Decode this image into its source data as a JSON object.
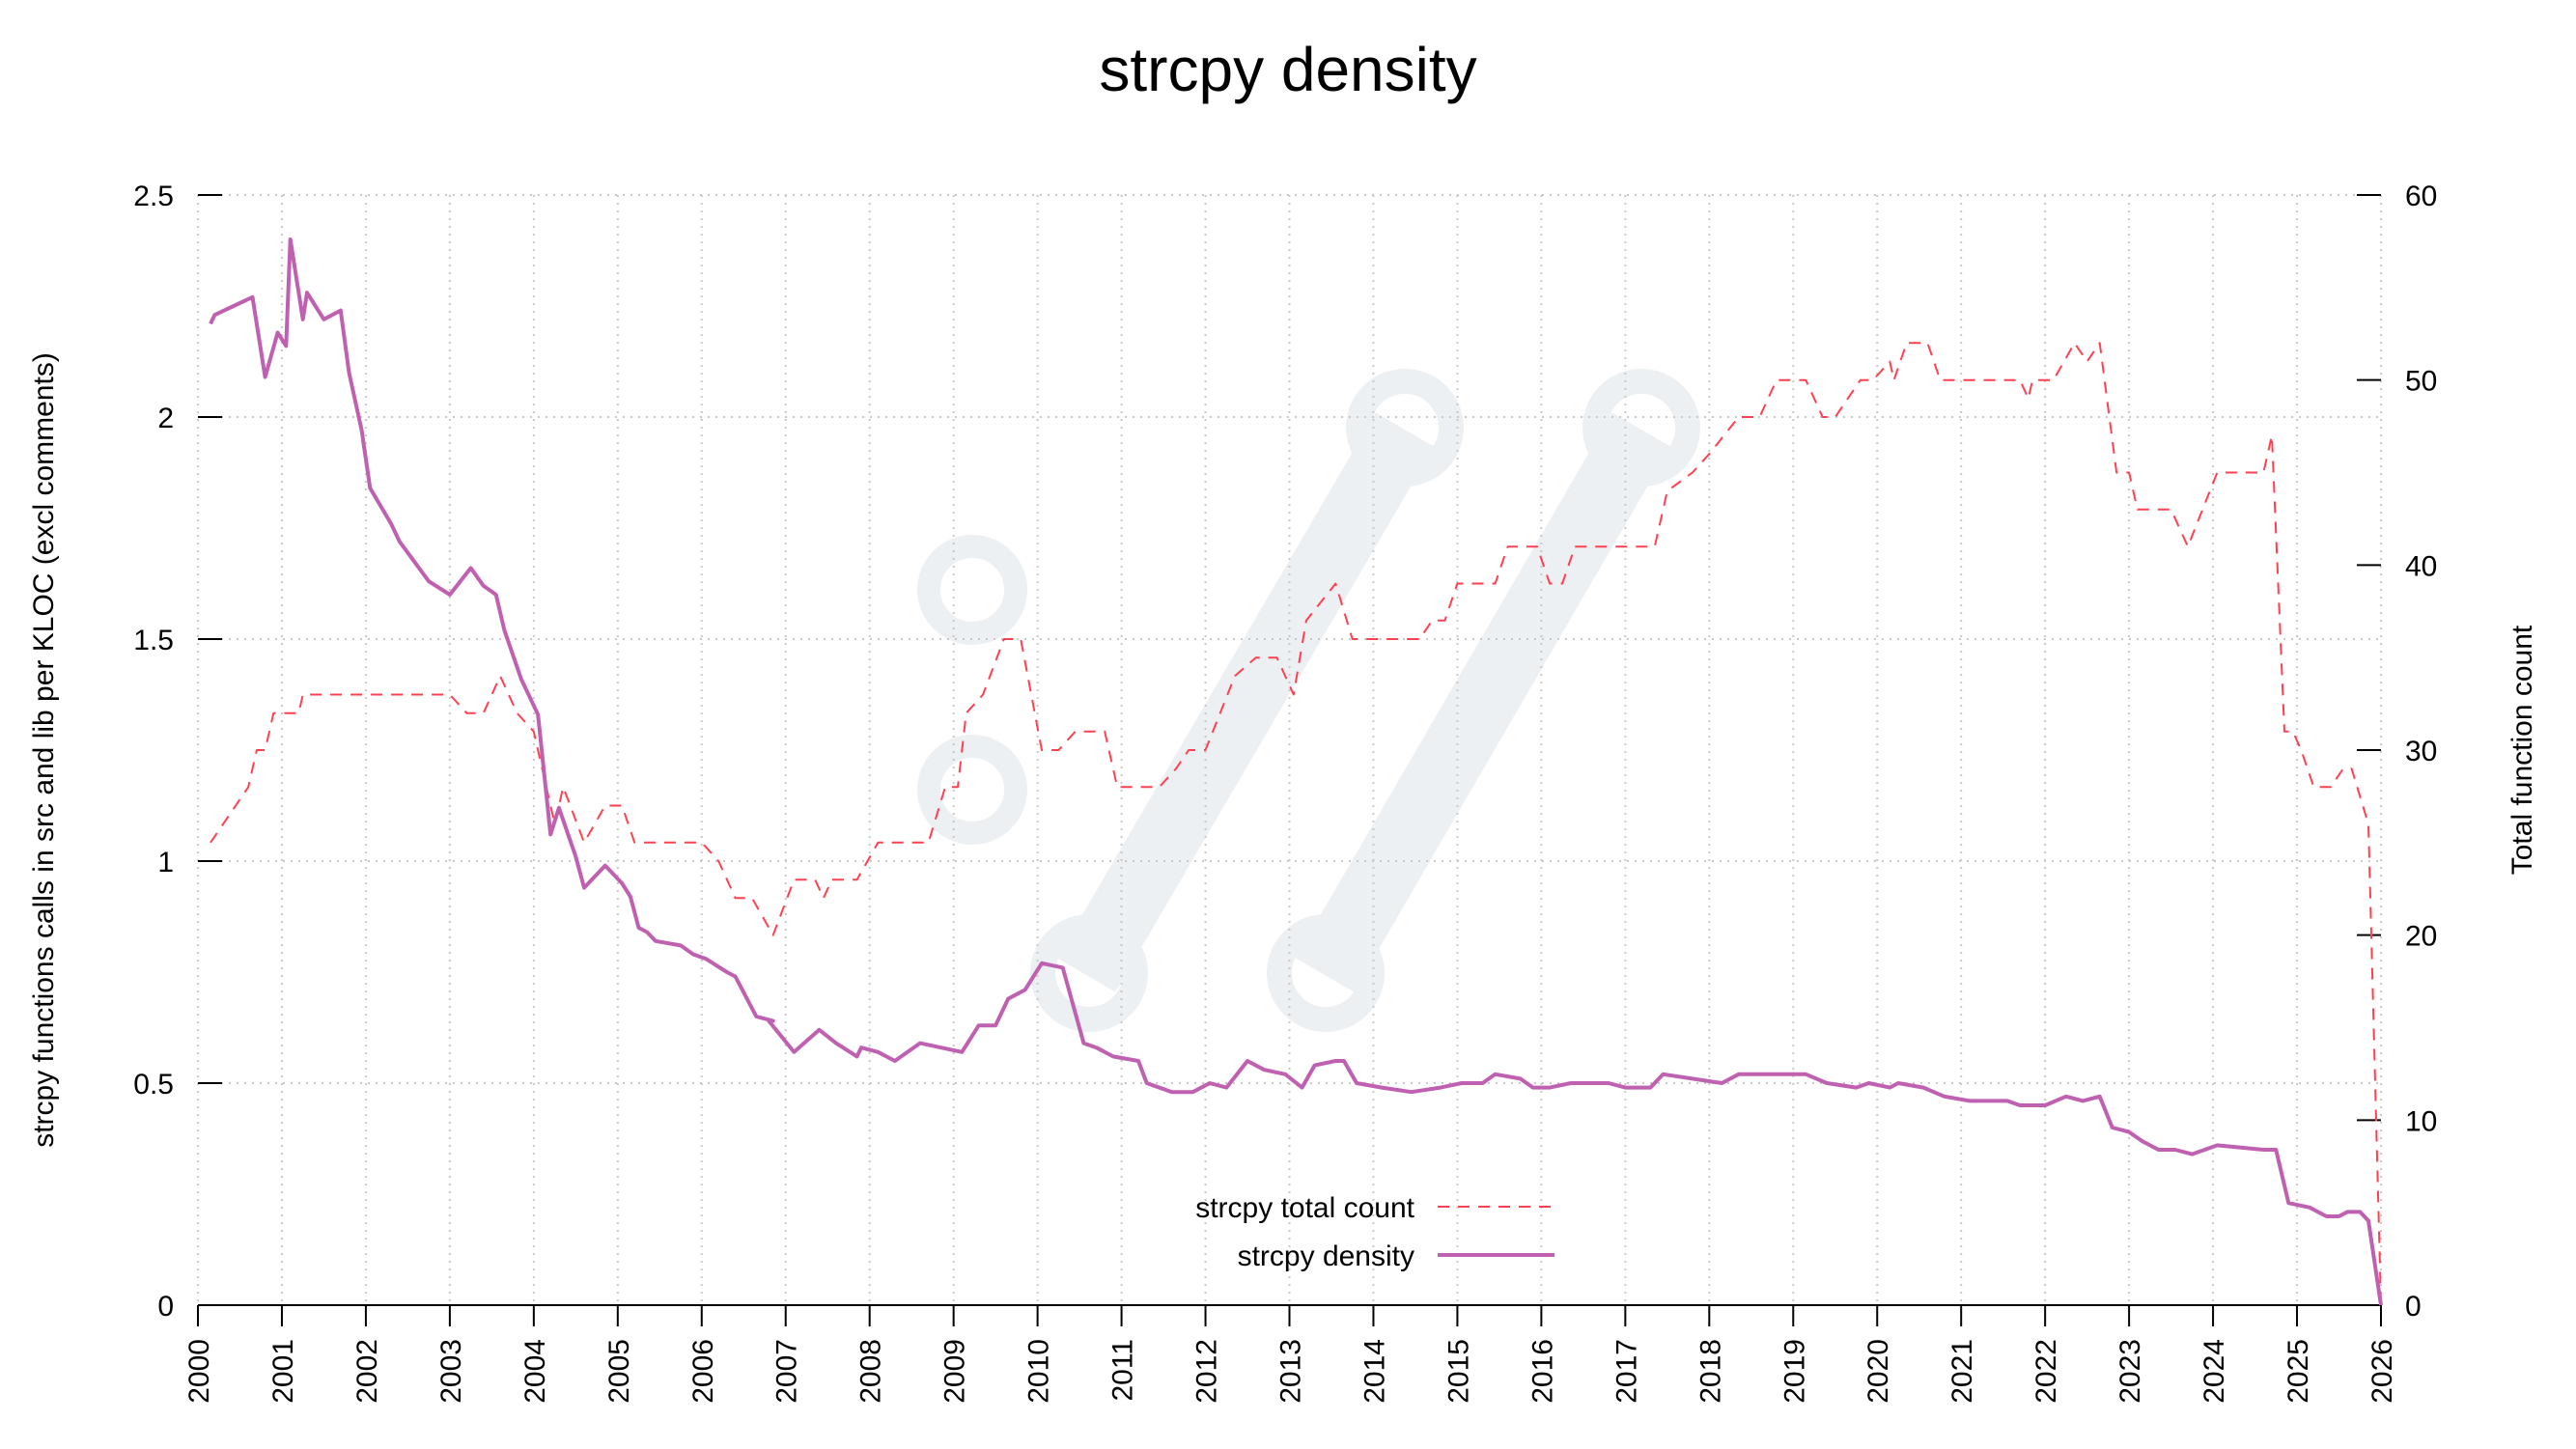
{
  "chart_data": {
    "type": "line",
    "title": "strcpy density",
    "xlabel": "",
    "ylabel": "strcpy functions calls in src and lib per KLOC (excl comments)",
    "y2label": "Total function count",
    "xlim": [
      2000,
      2026
    ],
    "ylim": [
      0,
      2.5
    ],
    "y2lim": [
      0,
      60
    ],
    "grid": true,
    "legend_position": "bottom-center",
    "x_ticks": [
      "2000",
      "2001",
      "2002",
      "2003",
      "2004",
      "2005",
      "2006",
      "2007",
      "2008",
      "2009",
      "2010",
      "2011",
      "2012",
      "2013",
      "2014",
      "2015",
      "2016",
      "2017",
      "2018",
      "2019",
      "2020",
      "2021",
      "2022",
      "2023",
      "2024",
      "2025",
      "2026"
    ],
    "y_ticks": [
      "0",
      "0.5",
      "1",
      "1.5",
      "2",
      "2.5"
    ],
    "y2_ticks": [
      "0",
      "10",
      "20",
      "30",
      "40",
      "50",
      "60"
    ],
    "series": [
      {
        "name": "strcpy total count",
        "axis": "right",
        "style": "dashed",
        "color": "#ff4050",
        "points": [
          [
            2000.15,
            25
          ],
          [
            2000.6,
            28
          ],
          [
            2000.7,
            30
          ],
          [
            2000.8,
            30
          ],
          [
            2000.9,
            32
          ],
          [
            2001.2,
            32
          ],
          [
            2001.25,
            33
          ],
          [
            2003.0,
            33
          ],
          [
            2003.2,
            32
          ],
          [
            2003.4,
            32
          ],
          [
            2003.6,
            34
          ],
          [
            2003.8,
            32
          ],
          [
            2004.0,
            31
          ],
          [
            2004.25,
            26
          ],
          [
            2004.35,
            28
          ],
          [
            2004.6,
            25
          ],
          [
            2004.85,
            27
          ],
          [
            2005.05,
            27
          ],
          [
            2005.2,
            25
          ],
          [
            2006.0,
            25
          ],
          [
            2006.2,
            24
          ],
          [
            2006.4,
            22
          ],
          [
            2006.6,
            22
          ],
          [
            2006.85,
            20
          ],
          [
            2007.1,
            23
          ],
          [
            2007.35,
            23
          ],
          [
            2007.45,
            22
          ],
          [
            2007.55,
            23
          ],
          [
            2007.85,
            23
          ],
          [
            2008.1,
            25
          ],
          [
            2008.7,
            25
          ],
          [
            2008.9,
            28
          ],
          [
            2009.05,
            28
          ],
          [
            2009.15,
            32
          ],
          [
            2009.35,
            33
          ],
          [
            2009.6,
            36
          ],
          [
            2009.8,
            36
          ],
          [
            2010.05,
            30
          ],
          [
            2010.25,
            30
          ],
          [
            2010.45,
            31
          ],
          [
            2010.8,
            31
          ],
          [
            2010.95,
            28
          ],
          [
            2011.45,
            28
          ],
          [
            2011.65,
            29
          ],
          [
            2011.8,
            30
          ],
          [
            2012.0,
            30
          ],
          [
            2012.35,
            34
          ],
          [
            2012.6,
            35
          ],
          [
            2012.85,
            35
          ],
          [
            2013.05,
            33
          ],
          [
            2013.2,
            37
          ],
          [
            2013.55,
            39
          ],
          [
            2013.75,
            36
          ],
          [
            2014.55,
            36
          ],
          [
            2014.7,
            37
          ],
          [
            2014.85,
            37
          ],
          [
            2015.0,
            39
          ],
          [
            2015.45,
            39
          ],
          [
            2015.6,
            41
          ],
          [
            2015.95,
            41
          ],
          [
            2016.1,
            39
          ],
          [
            2016.25,
            39
          ],
          [
            2016.4,
            41
          ],
          [
            2017.35,
            41
          ],
          [
            2017.5,
            44
          ],
          [
            2017.8,
            45
          ],
          [
            2018.0,
            46
          ],
          [
            2018.35,
            48
          ],
          [
            2018.6,
            48
          ],
          [
            2018.8,
            50
          ],
          [
            2019.15,
            50
          ],
          [
            2019.35,
            48
          ],
          [
            2019.5,
            48
          ],
          [
            2019.8,
            50
          ],
          [
            2019.95,
            50
          ],
          [
            2020.15,
            51
          ],
          [
            2020.2,
            50
          ],
          [
            2020.35,
            52
          ],
          [
            2020.6,
            52
          ],
          [
            2020.75,
            50
          ],
          [
            2021.7,
            50
          ],
          [
            2021.8,
            49
          ],
          [
            2021.85,
            50
          ],
          [
            2022.1,
            50
          ],
          [
            2022.35,
            52
          ],
          [
            2022.5,
            51
          ],
          [
            2022.65,
            52
          ],
          [
            2022.85,
            45
          ],
          [
            2023.0,
            45
          ],
          [
            2023.1,
            43
          ],
          [
            2023.5,
            43
          ],
          [
            2023.7,
            41
          ],
          [
            2024.05,
            45
          ],
          [
            2024.6,
            45
          ],
          [
            2024.7,
            47
          ],
          [
            2024.85,
            31
          ],
          [
            2024.95,
            31
          ],
          [
            2025.05,
            30
          ],
          [
            2025.2,
            28
          ],
          [
            2025.4,
            28
          ],
          [
            2025.55,
            29
          ],
          [
            2025.65,
            29
          ],
          [
            2025.85,
            26
          ],
          [
            2026.0,
            0
          ]
        ]
      },
      {
        "name": "strcpy density",
        "axis": "left",
        "style": "solid",
        "color": "#c060b0",
        "points": [
          [
            2000.15,
            2.21
          ],
          [
            2000.2,
            2.23
          ],
          [
            2000.65,
            2.27
          ],
          [
            2000.8,
            2.09
          ],
          [
            2000.95,
            2.19
          ],
          [
            2001.05,
            2.16
          ],
          [
            2001.1,
            2.4
          ],
          [
            2001.25,
            2.22
          ],
          [
            2001.3,
            2.28
          ],
          [
            2001.4,
            2.25
          ],
          [
            2001.5,
            2.22
          ],
          [
            2001.7,
            2.24
          ],
          [
            2001.8,
            2.1
          ],
          [
            2001.95,
            1.97
          ],
          [
            2002.05,
            1.84
          ],
          [
            2002.3,
            1.76
          ],
          [
            2002.4,
            1.72
          ],
          [
            2002.75,
            1.63
          ],
          [
            2003.0,
            1.6
          ],
          [
            2003.25,
            1.66
          ],
          [
            2003.4,
            1.62
          ],
          [
            2003.55,
            1.6
          ],
          [
            2003.65,
            1.52
          ],
          [
            2003.85,
            1.41
          ],
          [
            2004.05,
            1.33
          ],
          [
            2004.2,
            1.06
          ],
          [
            2004.3,
            1.12
          ],
          [
            2004.5,
            1.01
          ],
          [
            2004.6,
            0.94
          ],
          [
            2004.85,
            0.99
          ],
          [
            2005.05,
            0.95
          ],
          [
            2005.15,
            0.92
          ],
          [
            2005.25,
            0.85
          ],
          [
            2005.35,
            0.84
          ],
          [
            2005.45,
            0.82
          ],
          [
            2005.75,
            0.81
          ],
          [
            2005.9,
            0.79
          ],
          [
            2006.05,
            0.78
          ],
          [
            2006.3,
            0.75
          ],
          [
            2006.4,
            0.74
          ],
          [
            2006.65,
            0.65
          ],
          [
            2006.85,
            0.64
          ],
          [
            2006.8,
            0.64
          ],
          [
            2007.1,
            0.57
          ],
          [
            2007.4,
            0.62
          ],
          [
            2007.6,
            0.59
          ],
          [
            2007.85,
            0.56
          ],
          [
            2007.9,
            0.58
          ],
          [
            2008.1,
            0.57
          ],
          [
            2008.3,
            0.55
          ],
          [
            2008.6,
            0.59
          ],
          [
            2008.85,
            0.58
          ],
          [
            2009.1,
            0.57
          ],
          [
            2009.3,
            0.63
          ],
          [
            2009.5,
            0.63
          ],
          [
            2009.65,
            0.69
          ],
          [
            2009.85,
            0.71
          ],
          [
            2010.05,
            0.77
          ],
          [
            2010.3,
            0.76
          ],
          [
            2010.55,
            0.59
          ],
          [
            2010.7,
            0.58
          ],
          [
            2010.9,
            0.56
          ],
          [
            2011.2,
            0.55
          ],
          [
            2011.3,
            0.5
          ],
          [
            2011.6,
            0.48
          ],
          [
            2011.85,
            0.48
          ],
          [
            2012.05,
            0.5
          ],
          [
            2012.25,
            0.49
          ],
          [
            2012.5,
            0.55
          ],
          [
            2012.7,
            0.53
          ],
          [
            2012.95,
            0.52
          ],
          [
            2013.15,
            0.49
          ],
          [
            2013.3,
            0.54
          ],
          [
            2013.55,
            0.55
          ],
          [
            2013.65,
            0.55
          ],
          [
            2013.8,
            0.5
          ],
          [
            2014.1,
            0.49
          ],
          [
            2014.45,
            0.48
          ],
          [
            2014.8,
            0.49
          ],
          [
            2015.05,
            0.5
          ],
          [
            2015.3,
            0.5
          ],
          [
            2015.45,
            0.52
          ],
          [
            2015.75,
            0.51
          ],
          [
            2015.9,
            0.49
          ],
          [
            2016.1,
            0.49
          ],
          [
            2016.35,
            0.5
          ],
          [
            2016.8,
            0.5
          ],
          [
            2017.0,
            0.49
          ],
          [
            2017.3,
            0.49
          ],
          [
            2017.45,
            0.52
          ],
          [
            2017.8,
            0.51
          ],
          [
            2018.15,
            0.5
          ],
          [
            2018.35,
            0.52
          ],
          [
            2018.65,
            0.52
          ],
          [
            2018.9,
            0.52
          ],
          [
            2019.15,
            0.52
          ],
          [
            2019.4,
            0.5
          ],
          [
            2019.75,
            0.49
          ],
          [
            2019.9,
            0.5
          ],
          [
            2020.15,
            0.49
          ],
          [
            2020.25,
            0.5
          ],
          [
            2020.55,
            0.49
          ],
          [
            2020.8,
            0.47
          ],
          [
            2021.1,
            0.46
          ],
          [
            2021.55,
            0.46
          ],
          [
            2021.7,
            0.45
          ],
          [
            2022.0,
            0.45
          ],
          [
            2022.25,
            0.47
          ],
          [
            2022.45,
            0.46
          ],
          [
            2022.65,
            0.47
          ],
          [
            2022.8,
            0.4
          ],
          [
            2023.0,
            0.39
          ],
          [
            2023.15,
            0.37
          ],
          [
            2023.35,
            0.35
          ],
          [
            2023.55,
            0.35
          ],
          [
            2023.75,
            0.34
          ],
          [
            2024.05,
            0.36
          ],
          [
            2024.6,
            0.35
          ],
          [
            2024.75,
            0.35
          ],
          [
            2024.9,
            0.23
          ],
          [
            2025.15,
            0.22
          ],
          [
            2025.35,
            0.2
          ],
          [
            2025.5,
            0.2
          ],
          [
            2025.6,
            0.21
          ],
          [
            2025.75,
            0.21
          ],
          [
            2025.85,
            0.19
          ],
          [
            2026.0,
            0.0
          ]
        ]
      }
    ]
  }
}
